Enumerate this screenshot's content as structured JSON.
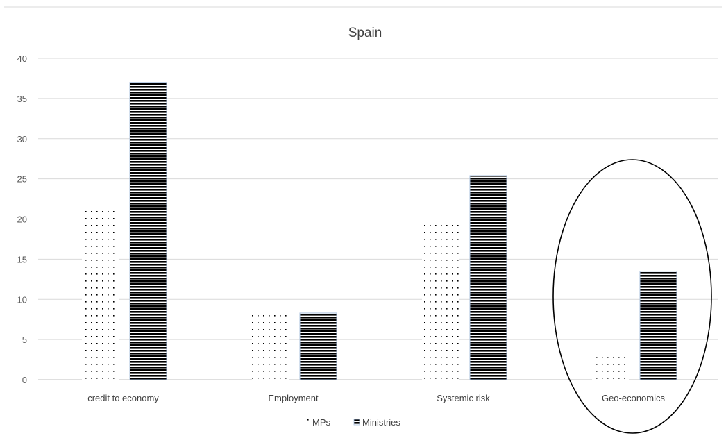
{
  "chart_data": {
    "type": "bar",
    "title": "Spain",
    "xlabel": "",
    "ylabel": "",
    "categories": [
      "credit to economy",
      "Employment",
      "Systemic risk",
      "Geo-economics"
    ],
    "series": [
      {
        "name": "MPs",
        "values": [
          21,
          8.7,
          19.7,
          2.9
        ],
        "pattern": "dots",
        "color": "#000000"
      },
      {
        "name": "Ministries",
        "values": [
          37,
          8.3,
          25.4,
          13.5
        ],
        "pattern": "horizontal-lines",
        "color": "#000000",
        "outline": "#a9c0de"
      }
    ],
    "ylim": [
      0,
      40
    ],
    "yticks": [
      0,
      5,
      10,
      15,
      20,
      25,
      30,
      35,
      40
    ],
    "grid": true,
    "legend_position": "bottom",
    "annotation": {
      "type": "ellipse",
      "highlighted_category": "Geo-economics"
    }
  }
}
